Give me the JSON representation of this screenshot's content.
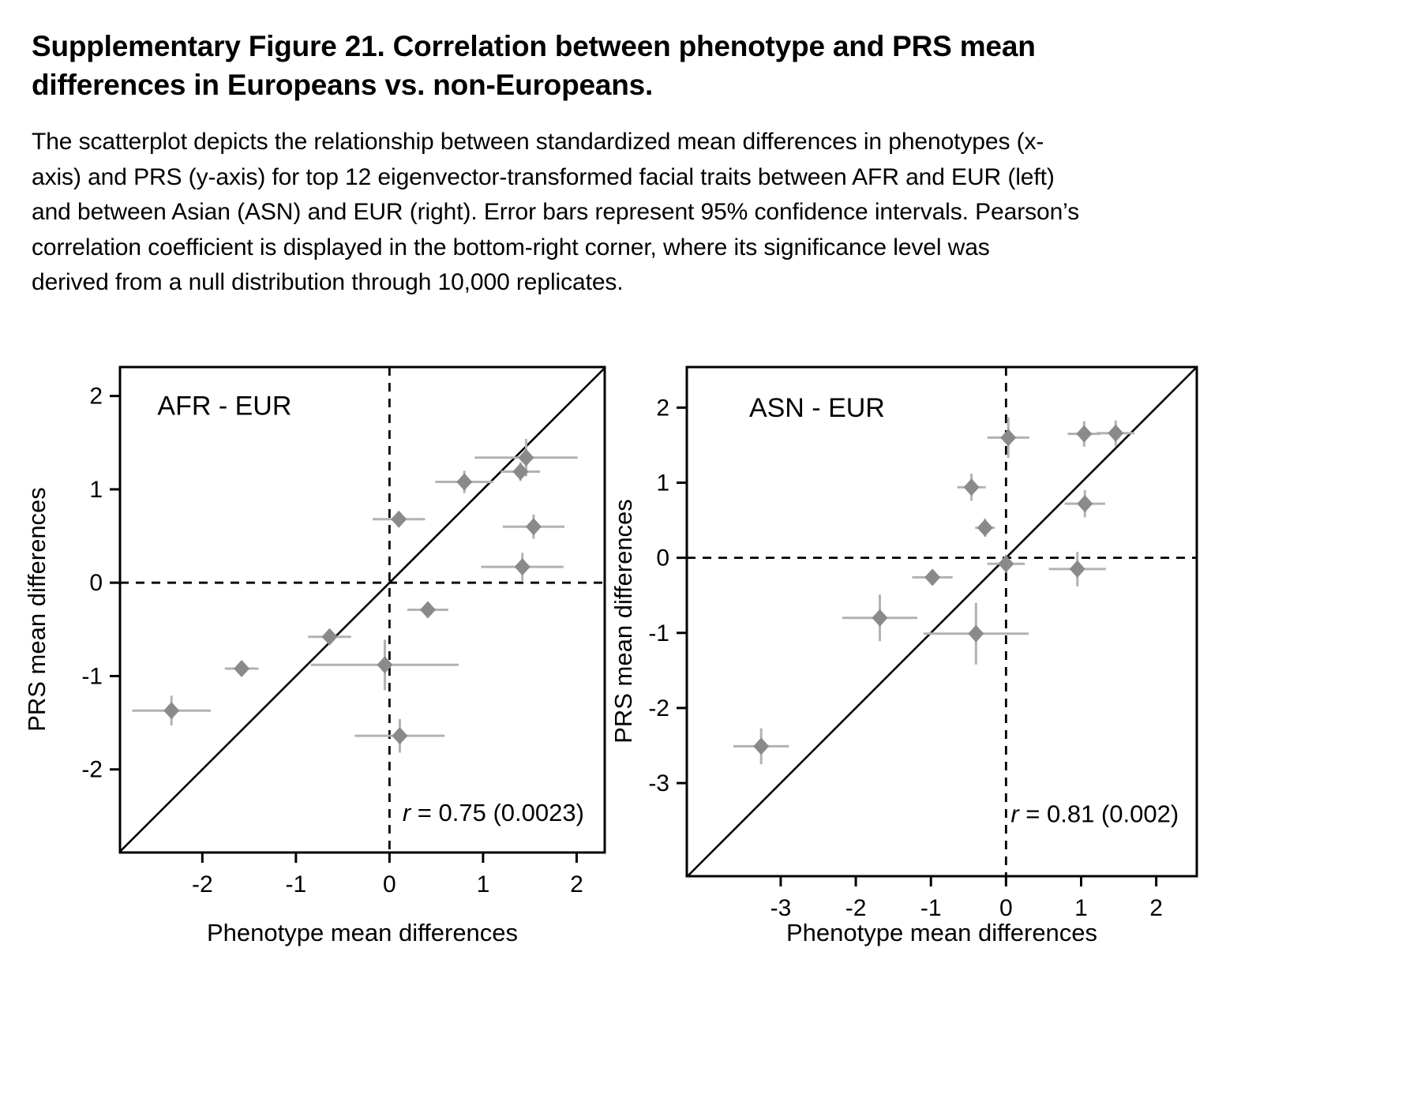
{
  "title": {
    "lines": [
      "Supplementary Figure 21. Correlation between phenotype and PRS mean",
      "differences in Europeans vs. non-Europeans."
    ]
  },
  "caption": {
    "lines": [
      "The scatterplot depicts the relationship between standardized mean differences in phenotypes (x-",
      "axis) and PRS (y-axis) for top 12 eigenvector-transformed facial traits between AFR and EUR (left)",
      "and between Asian (ASN) and EUR (right). Error bars represent 95% confidence intervals. Pearson’s",
      "correlation coefficient is displayed in the bottom-right corner, where its significance level was",
      "derived from a null distribution through 10,000 replicates."
    ]
  },
  "style": {
    "point_color": "#8a8a8a",
    "error_bar_color": "#b2b2b2",
    "line_color": "#000000",
    "background": "#ffffff"
  },
  "chart_data": [
    {
      "type": "scatter",
      "panel": "left",
      "title": "AFR - EUR",
      "xlabel": "Phenotype mean differences",
      "ylabel": "PRS mean differences",
      "r_var": "r",
      "r_text": " = 0.75 (0.0023)",
      "r_full": "r = 0.75 (0.0023)",
      "xlim": [
        -2.88,
        2.3
      ],
      "ylim": [
        -2.89,
        2.31
      ],
      "xticks": [
        -2,
        -1,
        0,
        1,
        2
      ],
      "yticks": [
        2,
        1,
        0,
        -1,
        -2
      ],
      "grid": false,
      "identity_line": true,
      "zero_lines_dashed": true,
      "title_anchor": {
        "x": -2.48,
        "y": 1.8
      },
      "r_anchor": {
        "x": 2.08,
        "y": -2.55
      },
      "points": [
        {
          "x": -2.33,
          "y": -1.37,
          "xerr": 0.42,
          "yerr": 0.16
        },
        {
          "x": -1.58,
          "y": -0.92,
          "xerr": 0.18,
          "yerr": 0.08
        },
        {
          "x": -0.64,
          "y": -0.58,
          "xerr": 0.23,
          "yerr": 0.08
        },
        {
          "x": -0.05,
          "y": -0.88,
          "xerr": 0.79,
          "yerr": 0.27
        },
        {
          "x": 0.11,
          "y": -1.64,
          "xerr": 0.48,
          "yerr": 0.18
        },
        {
          "x": 0.1,
          "y": 0.68,
          "xerr": 0.28,
          "yerr": 0.08
        },
        {
          "x": 0.41,
          "y": -0.29,
          "xerr": 0.22,
          "yerr": 0.06
        },
        {
          "x": 0.8,
          "y": 1.08,
          "xerr": 0.31,
          "yerr": 0.12
        },
        {
          "x": 1.4,
          "y": 1.19,
          "xerr": 0.21,
          "yerr": 0.1
        },
        {
          "x": 1.46,
          "y": 1.34,
          "xerr": 0.55,
          "yerr": 0.2
        },
        {
          "x": 1.54,
          "y": 0.6,
          "xerr": 0.33,
          "yerr": 0.13
        },
        {
          "x": 1.42,
          "y": 0.17,
          "xerr": 0.44,
          "yerr": 0.15
        }
      ]
    },
    {
      "type": "scatter",
      "panel": "right",
      "title": "ASN - EUR",
      "xlabel": "Phenotype mean differences",
      "ylabel": "PRS mean differences",
      "r_var": "r",
      "r_text": " = 0.81 (0.002)",
      "r_full": "r = 0.81 (0.002)",
      "xlim": [
        -4.25,
        2.54
      ],
      "ylim": [
        -4.24,
        2.54
      ],
      "xticks": [
        -3,
        -2,
        -1,
        0,
        1,
        2
      ],
      "yticks": [
        2,
        1,
        0,
        -1,
        -2,
        -3
      ],
      "grid": false,
      "identity_line": true,
      "zero_lines_dashed": true,
      "title_anchor": {
        "x": -3.42,
        "y": 1.88
      },
      "r_anchor": {
        "x": 2.3,
        "y": -3.52
      },
      "points": [
        {
          "x": -3.26,
          "y": -2.51,
          "xerr": 0.37,
          "yerr": 0.24
        },
        {
          "x": -1.68,
          "y": -0.8,
          "xerr": 0.5,
          "yerr": 0.31
        },
        {
          "x": -0.98,
          "y": -0.26,
          "xerr": 0.27,
          "yerr": 0.1
        },
        {
          "x": -0.46,
          "y": 0.94,
          "xerr": 0.19,
          "yerr": 0.18
        },
        {
          "x": -0.4,
          "y": -1.01,
          "xerr": 0.7,
          "yerr": 0.41
        },
        {
          "x": -0.28,
          "y": 0.4,
          "xerr": 0.13,
          "yerr": 0.12
        },
        {
          "x": 0.03,
          "y": 1.6,
          "xerr": 0.28,
          "yerr": 0.27
        },
        {
          "x": 0.0,
          "y": -0.08,
          "xerr": 0.25,
          "yerr": 0.12
        },
        {
          "x": 0.95,
          "y": -0.15,
          "xerr": 0.38,
          "yerr": 0.23
        },
        {
          "x": 1.04,
          "y": 1.65,
          "xerr": 0.22,
          "yerr": 0.17
        },
        {
          "x": 1.46,
          "y": 1.66,
          "xerr": 0.25,
          "yerr": 0.17
        },
        {
          "x": 1.05,
          "y": 0.72,
          "xerr": 0.27,
          "yerr": 0.18
        }
      ]
    }
  ]
}
